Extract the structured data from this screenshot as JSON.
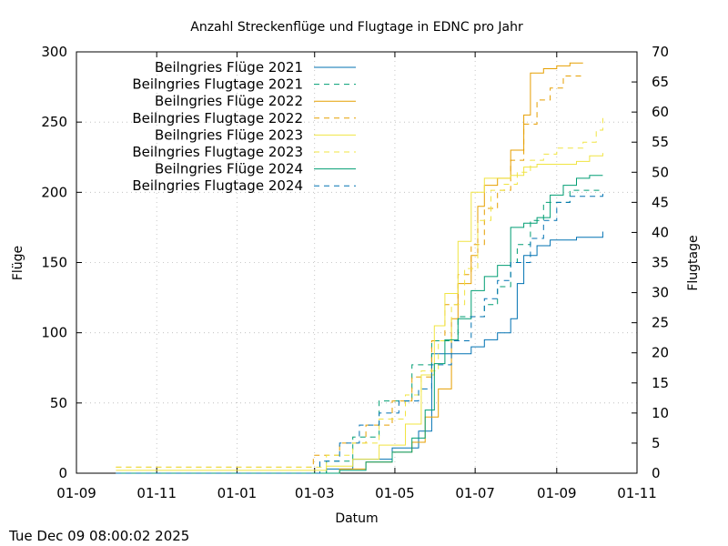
{
  "chart_data": {
    "type": "line",
    "title": "Anzahl Streckenflüge und Flugtage in EDNC pro Jahr",
    "xlabel": "Datum",
    "ylabel": "Flüge",
    "y2label": "Flugtage",
    "x_ticks": [
      "01-09",
      "01-11",
      "01-01",
      "01-03",
      "01-05",
      "01-07",
      "01-09",
      "01-11"
    ],
    "x_tick_positions": [
      0,
      61,
      122,
      181,
      242,
      303,
      365,
      426
    ],
    "xlim": [
      0,
      426
    ],
    "ylim": [
      0,
      300
    ],
    "y2lim": [
      0,
      70
    ],
    "y_ticks": [
      0,
      50,
      100,
      150,
      200,
      250,
      300
    ],
    "y2_ticks": [
      0,
      5,
      10,
      15,
      20,
      25,
      30,
      35,
      40,
      45,
      50,
      55,
      60,
      65,
      70
    ],
    "grid": true,
    "legend_position": "top-left",
    "series": [
      {
        "name": "Beilngries Flüge 2021",
        "axis": "y1",
        "style": "solid",
        "color": "#0072b2",
        "x": [
          30,
          170,
          190,
          210,
          240,
          260,
          270,
          300,
          310,
          320,
          330,
          335,
          340,
          350,
          360,
          370,
          380,
          400
        ],
        "y": [
          0,
          0,
          3,
          10,
          18,
          30,
          85,
          90,
          95,
          100,
          110,
          135,
          155,
          162,
          166,
          166,
          168,
          172
        ]
      },
      {
        "name": "Beilngries Flugtage 2021",
        "axis": "y2",
        "style": "dashed",
        "color": "#009e73",
        "x": [
          30,
          170,
          190,
          210,
          230,
          255,
          270,
          290,
          300,
          310,
          320,
          330,
          335,
          345,
          355,
          365,
          375,
          385,
          400
        ],
        "y": [
          0,
          0,
          2,
          6,
          12,
          18,
          22,
          26,
          26,
          28,
          31,
          35,
          38,
          42,
          45,
          45,
          47,
          47,
          47
        ]
      },
      {
        "name": "Beilngries Flüge 2022",
        "axis": "y1",
        "style": "solid",
        "color": "#e69f00",
        "x": [
          30,
          175,
          200,
          220,
          240,
          255,
          265,
          275,
          285,
          290,
          300,
          305,
          310,
          320,
          330,
          340,
          345,
          355,
          365,
          375,
          385
        ],
        "y": [
          0,
          0,
          3,
          8,
          15,
          22,
          40,
          60,
          110,
          135,
          155,
          190,
          205,
          210,
          230,
          255,
          285,
          288,
          290,
          292,
          292
        ]
      },
      {
        "name": "Beilngries Flugtage 2022",
        "axis": "y2",
        "style": "dashed",
        "color": "#e69f00",
        "x": [
          30,
          170,
          180,
          200,
          220,
          240,
          255,
          270,
          280,
          290,
          300,
          310,
          320,
          330,
          340,
          350,
          360,
          370,
          385
        ],
        "y": [
          1,
          1,
          3,
          5,
          8,
          12,
          16,
          22,
          28,
          33,
          38,
          44,
          47,
          52,
          58,
          62,
          64,
          66,
          66
        ]
      },
      {
        "name": "Beilngries Flüge 2023",
        "axis": "y1",
        "style": "solid",
        "color": "#f0e442",
        "x": [
          30,
          172,
          190,
          210,
          230,
          250,
          262,
          272,
          280,
          290,
          300,
          310,
          320,
          330,
          340,
          350,
          360,
          370,
          380,
          390,
          400
        ],
        "y": [
          2,
          2,
          5,
          10,
          20,
          35,
          70,
          105,
          128,
          165,
          200,
          210,
          210,
          212,
          218,
          220,
          220,
          220,
          222,
          226,
          228
        ]
      },
      {
        "name": "Beilngries Flugtage 2023",
        "axis": "y2",
        "style": "dashed",
        "color": "#f0e442",
        "x": [
          30,
          170,
          190,
          210,
          230,
          250,
          262,
          275,
          285,
          295,
          305,
          315,
          325,
          335,
          345,
          355,
          365,
          375,
          385,
          395,
          400
        ],
        "y": [
          1,
          1,
          3,
          5,
          9,
          13,
          17,
          22,
          28,
          34,
          42,
          47,
          48,
          50,
          52,
          53,
          54,
          54,
          55,
          57,
          59
        ]
      },
      {
        "name": "Beilngries Flüge 2024",
        "axis": "y1",
        "style": "solid",
        "color": "#009e73",
        "x": [
          30,
          178,
          200,
          220,
          240,
          255,
          265,
          272,
          280,
          290,
          300,
          310,
          320,
          330,
          340,
          350,
          360,
          370,
          380,
          390,
          400
        ],
        "y": [
          0,
          0,
          2,
          8,
          15,
          25,
          45,
          78,
          95,
          110,
          130,
          140,
          148,
          175,
          178,
          182,
          198,
          205,
          210,
          212,
          212
        ]
      },
      {
        "name": "Beilngries Flugtage 2024",
        "axis": "y2",
        "style": "dashed",
        "color": "#0072b2",
        "x": [
          30,
          172,
          185,
          200,
          215,
          230,
          245,
          260,
          270,
          285,
          300,
          310,
          320,
          330,
          345,
          355,
          365,
          375,
          385,
          400
        ],
        "y": [
          0,
          0,
          2,
          5,
          8,
          10,
          12,
          14,
          18,
          22,
          26,
          29,
          32,
          35,
          39,
          42,
          45,
          46,
          46,
          47
        ]
      }
    ]
  },
  "footer_timestamp": "Tue Dec 09 08:00:02 2025"
}
